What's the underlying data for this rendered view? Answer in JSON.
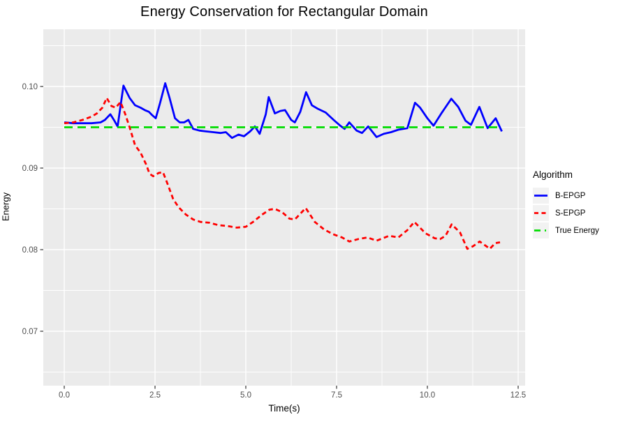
{
  "title": "Energy Conservation for Rectangular Domain",
  "chart_data": {
    "type": "line",
    "title": "Energy Conservation for Rectangular Domain",
    "xlabel": "Time(s)",
    "ylabel": "Energy",
    "xlim": [
      -0.58,
      12.69
    ],
    "ylim": [
      0.0633,
      0.107
    ],
    "x_ticks": [
      0.0,
      2.5,
      5.0,
      7.5,
      10.0,
      12.5
    ],
    "x_tick_labels": [
      "0.0",
      "2.5",
      "5.0",
      "7.5",
      "10.0",
      "12.5"
    ],
    "x_minor_ticks": [
      1.25,
      3.75,
      6.25,
      8.75,
      11.25
    ],
    "y_ticks": [
      0.07,
      0.08,
      0.09,
      0.1
    ],
    "y_tick_labels": [
      "0.07",
      "0.08",
      "0.09",
      "0.10"
    ],
    "y_minor_ticks": [
      0.065,
      0.075,
      0.085,
      0.095,
      0.105
    ],
    "grid": "white major and minor gridlines on gray panel",
    "panel_color": "#EBEBEB",
    "grid_color": "#FFFFFF",
    "tick_text_color": "#4D4D4D",
    "legend": {
      "title": "Algorithm",
      "position": "right",
      "entries": [
        {
          "label": "B-EPGP",
          "color": "#0000FF",
          "dash": "solid"
        },
        {
          "label": "S-EPGP",
          "color": "#FF0000",
          "dash": "dashed"
        },
        {
          "label": "True Energy",
          "color": "#00DD00",
          "dash": "longdash"
        }
      ]
    },
    "series": [
      {
        "name": "B-EPGP",
        "color": "#0000FF",
        "dash": "solid",
        "points": [
          [
            0.0,
            0.0956
          ],
          [
            0.25,
            0.0955
          ],
          [
            0.5,
            0.0955
          ],
          [
            0.75,
            0.0955
          ],
          [
            1.0,
            0.0956
          ],
          [
            1.12,
            0.0959
          ],
          [
            1.27,
            0.0966
          ],
          [
            1.38,
            0.0958
          ],
          [
            1.47,
            0.0951
          ],
          [
            1.63,
            0.1001
          ],
          [
            1.8,
            0.0986
          ],
          [
            1.95,
            0.0977
          ],
          [
            2.1,
            0.0974
          ],
          [
            2.22,
            0.0971
          ],
          [
            2.33,
            0.0969
          ],
          [
            2.42,
            0.0965
          ],
          [
            2.52,
            0.0961
          ],
          [
            2.64,
            0.098
          ],
          [
            2.78,
            0.1004
          ],
          [
            2.9,
            0.0986
          ],
          [
            3.05,
            0.0961
          ],
          [
            3.18,
            0.0956
          ],
          [
            3.3,
            0.0956
          ],
          [
            3.42,
            0.0959
          ],
          [
            3.55,
            0.0948
          ],
          [
            3.72,
            0.0946
          ],
          [
            3.9,
            0.0945
          ],
          [
            4.1,
            0.0944
          ],
          [
            4.3,
            0.0943
          ],
          [
            4.45,
            0.0944
          ],
          [
            4.62,
            0.0937
          ],
          [
            4.8,
            0.0941
          ],
          [
            4.95,
            0.0939
          ],
          [
            5.12,
            0.0945
          ],
          [
            5.25,
            0.0951
          ],
          [
            5.38,
            0.0942
          ],
          [
            5.55,
            0.0966
          ],
          [
            5.63,
            0.0987
          ],
          [
            5.8,
            0.0967
          ],
          [
            5.95,
            0.097
          ],
          [
            6.08,
            0.0971
          ],
          [
            6.25,
            0.0959
          ],
          [
            6.35,
            0.0956
          ],
          [
            6.5,
            0.0969
          ],
          [
            6.66,
            0.0993
          ],
          [
            6.82,
            0.0977
          ],
          [
            6.97,
            0.0973
          ],
          [
            7.2,
            0.0968
          ],
          [
            7.42,
            0.0959
          ],
          [
            7.6,
            0.0952
          ],
          [
            7.72,
            0.0948
          ],
          [
            7.85,
            0.0956
          ],
          [
            8.05,
            0.0946
          ],
          [
            8.2,
            0.0943
          ],
          [
            8.37,
            0.0951
          ],
          [
            8.6,
            0.0938
          ],
          [
            8.8,
            0.0942
          ],
          [
            9.0,
            0.0944
          ],
          [
            9.2,
            0.0947
          ],
          [
            9.45,
            0.0949
          ],
          [
            9.66,
            0.098
          ],
          [
            9.8,
            0.0974
          ],
          [
            10.0,
            0.0961
          ],
          [
            10.17,
            0.0952
          ],
          [
            10.4,
            0.0968
          ],
          [
            10.66,
            0.0985
          ],
          [
            10.85,
            0.0975
          ],
          [
            11.05,
            0.0958
          ],
          [
            11.2,
            0.0953
          ],
          [
            11.43,
            0.0975
          ],
          [
            11.66,
            0.0949
          ],
          [
            11.88,
            0.0961
          ],
          [
            12.05,
            0.0945
          ]
        ]
      },
      {
        "name": "S-EPGP",
        "color": "#FF0000",
        "dash": "dashed",
        "points": [
          [
            0.0,
            0.0955
          ],
          [
            0.25,
            0.0956
          ],
          [
            0.5,
            0.0959
          ],
          [
            0.75,
            0.0963
          ],
          [
            0.9,
            0.0967
          ],
          [
            1.05,
            0.0974
          ],
          [
            1.17,
            0.0986
          ],
          [
            1.3,
            0.0976
          ],
          [
            1.42,
            0.0974
          ],
          [
            1.55,
            0.0981
          ],
          [
            1.68,
            0.0966
          ],
          [
            1.8,
            0.095
          ],
          [
            1.95,
            0.0928
          ],
          [
            2.1,
            0.0919
          ],
          [
            2.25,
            0.0905
          ],
          [
            2.35,
            0.0893
          ],
          [
            2.45,
            0.089
          ],
          [
            2.6,
            0.0894
          ],
          [
            2.72,
            0.0895
          ],
          [
            2.85,
            0.088
          ],
          [
            3.0,
            0.0862
          ],
          [
            3.15,
            0.0852
          ],
          [
            3.35,
            0.0843
          ],
          [
            3.55,
            0.0837
          ],
          [
            3.75,
            0.0834
          ],
          [
            4.0,
            0.0833
          ],
          [
            4.25,
            0.083
          ],
          [
            4.5,
            0.0829
          ],
          [
            4.75,
            0.0827
          ],
          [
            5.0,
            0.0828
          ],
          [
            5.2,
            0.0834
          ],
          [
            5.45,
            0.0843
          ],
          [
            5.65,
            0.0849
          ],
          [
            5.8,
            0.085
          ],
          [
            6.0,
            0.0846
          ],
          [
            6.2,
            0.0838
          ],
          [
            6.35,
            0.0837
          ],
          [
            6.65,
            0.0851
          ],
          [
            6.9,
            0.0834
          ],
          [
            7.15,
            0.0825
          ],
          [
            7.4,
            0.0819
          ],
          [
            7.65,
            0.0815
          ],
          [
            7.85,
            0.081
          ],
          [
            8.1,
            0.0813
          ],
          [
            8.35,
            0.0815
          ],
          [
            8.6,
            0.0811
          ],
          [
            8.95,
            0.0817
          ],
          [
            9.2,
            0.0815
          ],
          [
            9.45,
            0.0824
          ],
          [
            9.64,
            0.0834
          ],
          [
            9.95,
            0.082
          ],
          [
            10.2,
            0.0814
          ],
          [
            10.35,
            0.0813
          ],
          [
            10.5,
            0.0817
          ],
          [
            10.67,
            0.0831
          ],
          [
            10.9,
            0.0821
          ],
          [
            11.1,
            0.0801
          ],
          [
            11.25,
            0.0804
          ],
          [
            11.44,
            0.081
          ],
          [
            11.6,
            0.0805
          ],
          [
            11.72,
            0.0801
          ],
          [
            11.87,
            0.0808
          ],
          [
            12.0,
            0.0809
          ]
        ]
      },
      {
        "name": "True Energy",
        "color": "#00DD00",
        "dash": "longdash",
        "points": [
          [
            0.0,
            0.095
          ],
          [
            12.05,
            0.095
          ]
        ]
      }
    ]
  }
}
